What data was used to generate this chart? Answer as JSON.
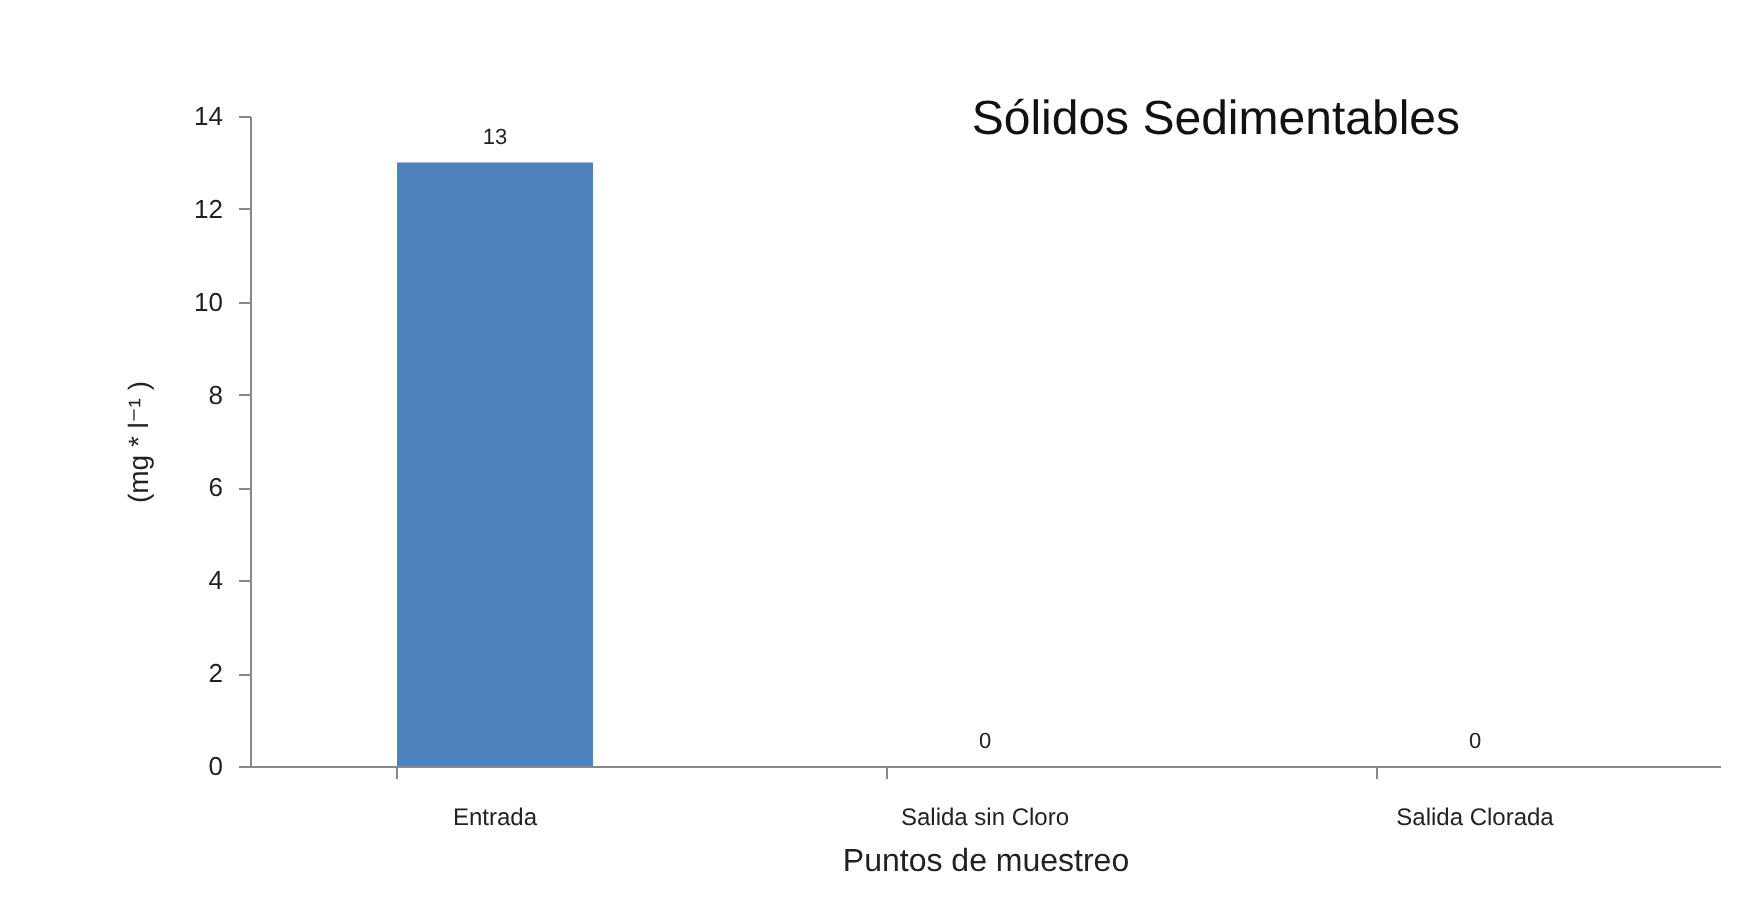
{
  "chart_data": {
    "type": "bar",
    "title": "Sólidos Sedimentables",
    "xlabel": "Puntos de muestreo",
    "ylabel": "(mg * l⁻¹ )",
    "categories": [
      "Entrada",
      "Salida sin Cloro",
      "Salida Clorada"
    ],
    "values": [
      13,
      0,
      0
    ],
    "color": "#4f81bd",
    "ylim": [
      0,
      14
    ],
    "yticks": [
      0,
      2,
      4,
      6,
      8,
      10,
      12,
      14
    ],
    "grid": false,
    "data_labels": true
  }
}
